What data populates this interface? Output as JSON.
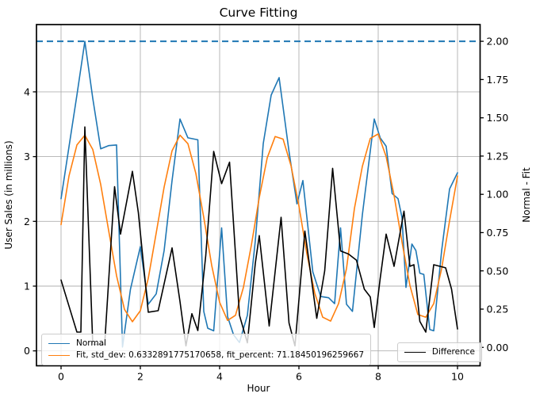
{
  "title": "Curve Fitting",
  "xlabel": "Hour",
  "ylabel_left": "User Sales (in millions)",
  "ylabel_right": "Normal - Fit",
  "chart_data": {
    "type": "line",
    "title": "Curve Fitting",
    "xlabel": "Hour",
    "ylabel_left": "User Sales (in millions)",
    "ylabel_right": "Normal - Fit",
    "x_ticks": [
      0,
      2,
      4,
      6,
      8,
      10
    ],
    "yleft_ticks": [
      0,
      1,
      2,
      3,
      4
    ],
    "yright_ticks": [
      "0.00",
      "0.25",
      "0.50",
      "0.75",
      "1.00",
      "1.25",
      "1.50",
      "1.75",
      "2.00"
    ],
    "yright_tick_values": [
      0,
      0.25,
      0.5,
      0.75,
      1.0,
      1.25,
      1.5,
      1.75,
      2.0
    ],
    "xlim": [
      -0.62,
      10.57
    ],
    "ylim_left": [
      -0.23,
      5.04
    ],
    "ylim_right": [
      -0.12,
      2.11
    ],
    "grid": true,
    "grid_color": "#b0b0b0",
    "hline": {
      "axis": "right",
      "y": 2.0,
      "color": "#1f77b4",
      "style": "dashed"
    },
    "legend_positions": [
      "lower left",
      "lower right"
    ],
    "series": [
      {
        "id": "normal",
        "name": "Normal",
        "color": "#1f77b4",
        "axis": "left",
        "points": [
          [
            0.0,
            2.35
          ],
          [
            0.2,
            3.15
          ],
          [
            0.4,
            3.95
          ],
          [
            0.6,
            4.78
          ],
          [
            0.8,
            3.9
          ],
          [
            1.0,
            3.12
          ],
          [
            1.2,
            3.17
          ],
          [
            1.4,
            3.18
          ],
          [
            1.55,
            0.06
          ],
          [
            1.75,
            0.95
          ],
          [
            2.0,
            1.61
          ],
          [
            2.2,
            0.72
          ],
          [
            2.4,
            0.88
          ],
          [
            2.6,
            1.55
          ],
          [
            2.8,
            2.63
          ],
          [
            3.0,
            3.58
          ],
          [
            3.2,
            3.29
          ],
          [
            3.45,
            3.26
          ],
          [
            3.6,
            0.61
          ],
          [
            3.7,
            0.35
          ],
          [
            3.85,
            0.31
          ],
          [
            4.05,
            1.9
          ],
          [
            4.2,
            0.53
          ],
          [
            4.35,
            0.25
          ],
          [
            4.5,
            0.13
          ],
          [
            4.7,
            0.55
          ],
          [
            4.9,
            1.7
          ],
          [
            5.1,
            3.2
          ],
          [
            5.3,
            3.95
          ],
          [
            5.5,
            4.22
          ],
          [
            5.75,
            3.08
          ],
          [
            5.95,
            2.27
          ],
          [
            6.1,
            2.63
          ],
          [
            6.35,
            1.22
          ],
          [
            6.55,
            0.84
          ],
          [
            6.75,
            0.82
          ],
          [
            6.9,
            0.73
          ],
          [
            7.05,
            1.9
          ],
          [
            7.2,
            0.72
          ],
          [
            7.35,
            0.61
          ],
          [
            7.6,
            2.1
          ],
          [
            7.9,
            3.58
          ],
          [
            8.05,
            3.29
          ],
          [
            8.2,
            3.16
          ],
          [
            8.35,
            2.43
          ],
          [
            8.5,
            2.35
          ],
          [
            8.6,
            2.06
          ],
          [
            8.7,
            0.98
          ],
          [
            8.85,
            1.65
          ],
          [
            8.95,
            1.55
          ],
          [
            9.05,
            1.2
          ],
          [
            9.15,
            1.18
          ],
          [
            9.3,
            0.33
          ],
          [
            9.4,
            0.31
          ],
          [
            9.6,
            1.55
          ],
          [
            9.8,
            2.5
          ],
          [
            10.0,
            2.75
          ]
        ]
      },
      {
        "id": "fit",
        "name": "Fit, std_dev: 0.6332891775170658, fit_percent: 71.18450196259667",
        "color": "#ff7f0e",
        "axis": "left",
        "points": [
          [
            0.0,
            1.95
          ],
          [
            0.2,
            2.7
          ],
          [
            0.4,
            3.18
          ],
          [
            0.6,
            3.33
          ],
          [
            0.8,
            3.11
          ],
          [
            1.0,
            2.57
          ],
          [
            1.2,
            1.86
          ],
          [
            1.4,
            1.16
          ],
          [
            1.6,
            0.64
          ],
          [
            1.8,
            0.45
          ],
          [
            2.0,
            0.62
          ],
          [
            2.2,
            1.12
          ],
          [
            2.4,
            1.82
          ],
          [
            2.6,
            2.53
          ],
          [
            2.8,
            3.09
          ],
          [
            3.0,
            3.33
          ],
          [
            3.2,
            3.2
          ],
          [
            3.4,
            2.74
          ],
          [
            3.6,
            2.06
          ],
          [
            3.8,
            1.32
          ],
          [
            4.0,
            0.75
          ],
          [
            4.2,
            0.47
          ],
          [
            4.4,
            0.55
          ],
          [
            4.6,
            0.98
          ],
          [
            4.8,
            1.63
          ],
          [
            5.0,
            2.37
          ],
          [
            5.2,
            2.98
          ],
          [
            5.4,
            3.31
          ],
          [
            5.6,
            3.27
          ],
          [
            5.8,
            2.86
          ],
          [
            6.0,
            2.24
          ],
          [
            6.2,
            1.5
          ],
          [
            6.4,
            0.89
          ],
          [
            6.6,
            0.52
          ],
          [
            6.8,
            0.46
          ],
          [
            7.0,
            0.73
          ],
          [
            7.2,
            1.27
          ],
          [
            7.4,
            2.2
          ],
          [
            7.6,
            2.85
          ],
          [
            7.8,
            3.28
          ],
          [
            8.0,
            3.35
          ],
          [
            8.2,
            3.0
          ],
          [
            8.4,
            2.4
          ],
          [
            8.6,
            1.68
          ],
          [
            8.8,
            1.01
          ],
          [
            9.0,
            0.56
          ],
          [
            9.2,
            0.52
          ],
          [
            9.4,
            0.73
          ],
          [
            9.6,
            1.27
          ],
          [
            9.8,
            2.01
          ],
          [
            10.0,
            2.7
          ]
        ]
      },
      {
        "id": "difference",
        "name": "Difference",
        "color": "#000000",
        "axis": "right",
        "points": [
          [
            0.0,
            0.44
          ],
          [
            0.2,
            0.27
          ],
          [
            0.4,
            0.1
          ],
          [
            0.5,
            0.1
          ],
          [
            0.6,
            1.44
          ],
          [
            0.8,
            0.02
          ],
          [
            1.1,
            0.02
          ],
          [
            1.35,
            1.05
          ],
          [
            1.5,
            0.74
          ],
          [
            1.8,
            1.15
          ],
          [
            1.95,
            0.88
          ],
          [
            2.2,
            0.23
          ],
          [
            2.45,
            0.24
          ],
          [
            2.8,
            0.65
          ],
          [
            3.0,
            0.3
          ],
          [
            3.15,
            0.01
          ],
          [
            3.3,
            0.22
          ],
          [
            3.45,
            0.11
          ],
          [
            3.65,
            0.6
          ],
          [
            3.85,
            1.28
          ],
          [
            4.05,
            1.07
          ],
          [
            4.25,
            1.21
          ],
          [
            4.5,
            0.21
          ],
          [
            4.7,
            0.03
          ],
          [
            4.9,
            0.55
          ],
          [
            5.0,
            0.73
          ],
          [
            5.25,
            0.14
          ],
          [
            5.55,
            0.85
          ],
          [
            5.75,
            0.16
          ],
          [
            5.9,
            0.01
          ],
          [
            6.15,
            0.76
          ],
          [
            6.45,
            0.19
          ],
          [
            6.65,
            0.5
          ],
          [
            6.85,
            1.17
          ],
          [
            7.05,
            0.63
          ],
          [
            7.25,
            0.61
          ],
          [
            7.45,
            0.57
          ],
          [
            7.65,
            0.38
          ],
          [
            7.8,
            0.33
          ],
          [
            7.9,
            0.13
          ],
          [
            8.05,
            0.45
          ],
          [
            8.2,
            0.74
          ],
          [
            8.4,
            0.53
          ],
          [
            8.65,
            0.89
          ],
          [
            8.8,
            0.53
          ],
          [
            8.9,
            0.54
          ],
          [
            9.05,
            0.17
          ],
          [
            9.2,
            0.1
          ],
          [
            9.4,
            0.54
          ],
          [
            9.7,
            0.52
          ],
          [
            9.85,
            0.38
          ],
          [
            10.0,
            0.12
          ]
        ]
      }
    ]
  }
}
